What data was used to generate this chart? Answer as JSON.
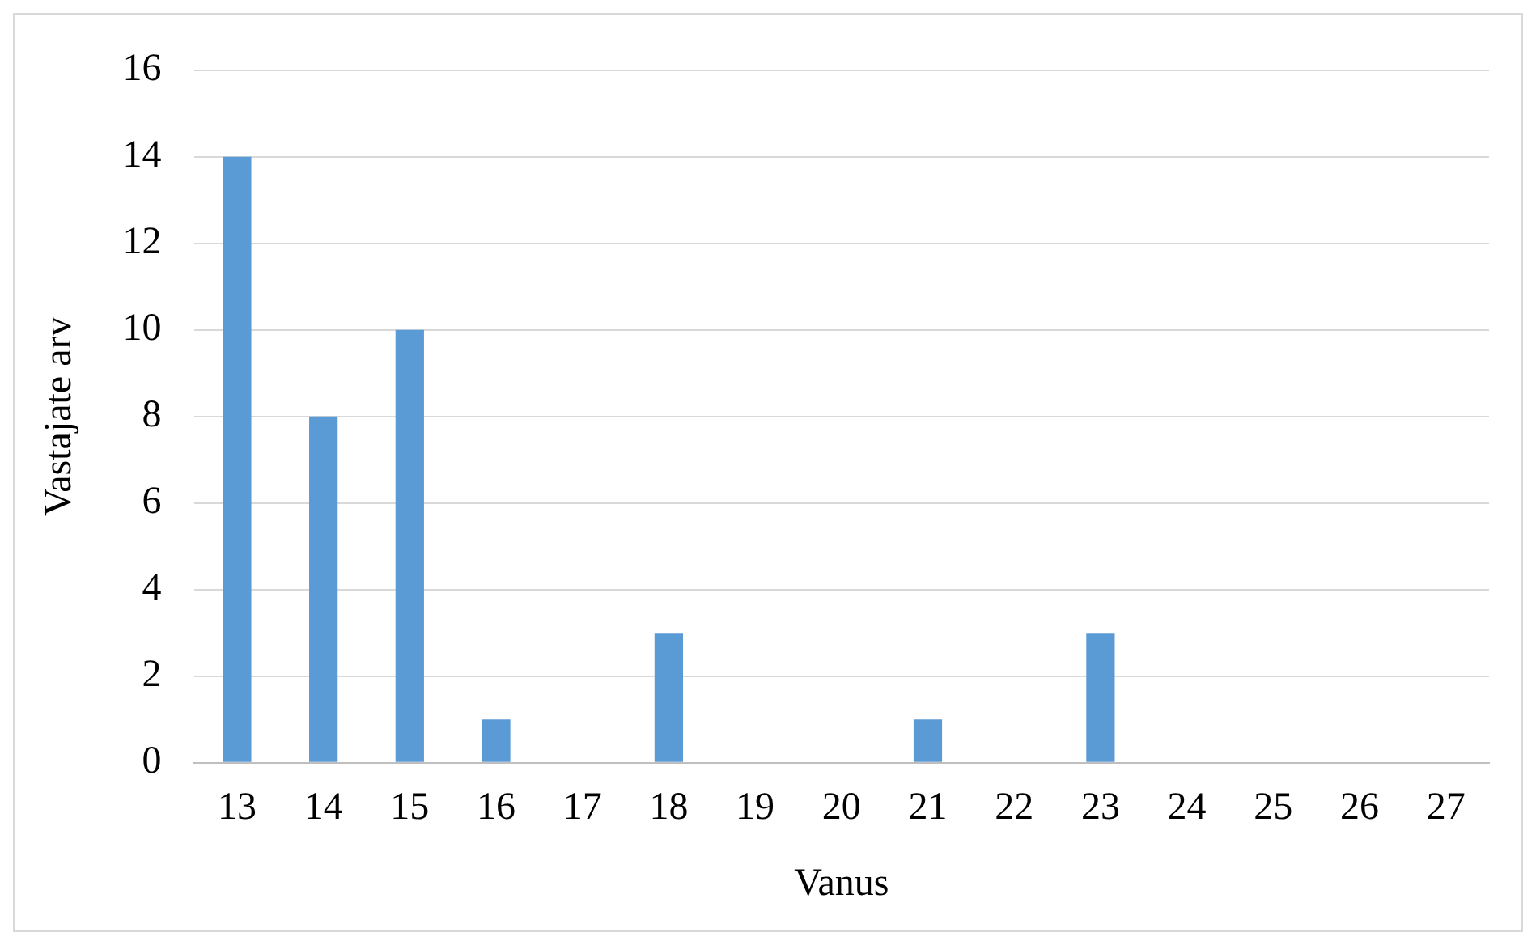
{
  "chart_data": {
    "type": "bar",
    "xlabel": "Vanus",
    "ylabel": "Vastajate arv",
    "categories": [
      "13",
      "14",
      "15",
      "16",
      "17",
      "18",
      "19",
      "20",
      "21",
      "22",
      "23",
      "24",
      "25",
      "26",
      "27"
    ],
    "values": [
      14,
      8,
      10,
      1,
      0,
      3,
      0,
      0,
      1,
      0,
      3,
      0,
      0,
      0,
      0
    ],
    "color": "#5b9bd5",
    "ylim": [
      0,
      16
    ],
    "yticks": [
      0,
      2,
      4,
      6,
      8,
      10,
      12,
      14,
      16
    ],
    "grid": "y",
    "legend": false
  }
}
